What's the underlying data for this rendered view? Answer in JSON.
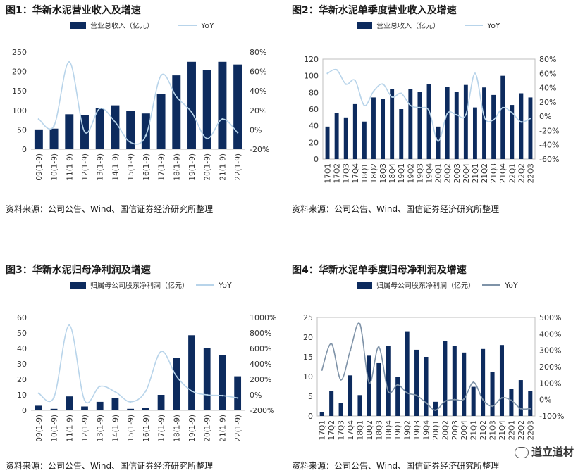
{
  "source_label": "资料来源：公司公告、Wind、国信证券经济研究所整理",
  "watermark": "道立道材",
  "colors": {
    "bar": "#0d2b5e",
    "line_light": "#b8d4ea",
    "line_dark": "#7f93a8",
    "axis": "#bfbfbf"
  },
  "chart_data": [
    {
      "type": "bar",
      "title": "图1：华新水泥营业收入及增速",
      "legend": {
        "bar": "营业总收入（亿元）",
        "line": "YoY"
      },
      "categories": [
        "09(1-9)",
        "10(1-9)",
        "11(1-9)",
        "12(1-9)",
        "13(1-9)",
        "14(1-9)",
        "15(1-9)",
        "16(1-9)",
        "17(1-9)",
        "18(1-9)",
        "19(1-9)",
        "20(1-9)",
        "21(1-9)",
        "22(1-9)"
      ],
      "series": [
        {
          "name": "营业总收入（亿元）",
          "type": "bar",
          "axis": "left",
          "values": [
            51,
            53,
            90,
            88,
            106,
            113,
            98,
            92,
            143,
            190,
            225,
            204,
            225,
            218
          ]
        },
        {
          "name": "YoY",
          "type": "line",
          "axis": "right",
          "values": [
            11,
            4,
            70,
            -2,
            22,
            8,
            -13,
            -6,
            56,
            34,
            18,
            -9,
            11,
            -3
          ]
        }
      ],
      "ylim": [
        0,
        250
      ],
      "yticks": [
        0,
        50,
        100,
        150,
        200,
        250
      ],
      "y2lim": [
        -20,
        80
      ],
      "y2ticks": [
        "-20%",
        "0%",
        "20%",
        "40%",
        "60%",
        "80%"
      ]
    },
    {
      "type": "bar",
      "title": "图2：华新水泥单季度营业收入及增速",
      "legend": {
        "bar": "营业总收入（亿元）",
        "line": "YoY"
      },
      "categories": [
        "17Q1",
        "17Q2",
        "17Q3",
        "17Q4",
        "18Q1",
        "18Q2",
        "18Q3",
        "18Q4",
        "19Q1",
        "19Q2",
        "19Q3",
        "19Q4",
        "20Q1",
        "20Q2",
        "20Q3",
        "20Q4",
        "21Q1",
        "21Q2",
        "21Q3",
        "21Q4",
        "22Q1",
        "22Q2",
        "22Q3"
      ],
      "series": [
        {
          "name": "营业总收入（亿元）",
          "type": "bar",
          "axis": "left",
          "values": [
            39,
            55,
            50,
            66,
            45,
            74,
            72,
            84,
            60,
            84,
            81,
            90,
            39,
            87,
            81,
            89,
            62,
            86,
            77,
            100,
            65,
            79,
            74
          ]
        },
        {
          "name": "YoY",
          "type": "line",
          "axis": "right",
          "values": [
            60,
            65,
            45,
            50,
            15,
            35,
            45,
            27,
            32,
            15,
            12,
            8,
            -35,
            4,
            2,
            2,
            60,
            -1,
            -5,
            12,
            5,
            -8,
            -3
          ]
        }
      ],
      "ylim": [
        0,
        120
      ],
      "yticks": [
        0,
        20,
        40,
        60,
        80,
        100,
        120
      ],
      "y2lim": [
        -60,
        80
      ],
      "y2ticks": [
        "-60%",
        "-40%",
        "-20%",
        "0%",
        "20%",
        "40%",
        "60%",
        "80%"
      ]
    },
    {
      "type": "bar",
      "title": "图3：华新水泥归母净利润及增速",
      "legend": {
        "bar": "归属母公司股东净利润（亿元）",
        "line": "YoY"
      },
      "categories": [
        "09(1-9)",
        "10(1-9)",
        "11(1-9)",
        "12(1-9)",
        "13(1-9)",
        "14(1-9)",
        "15(1-9)",
        "16(1-9)",
        "17(1-9)",
        "18(1-9)",
        "19(1-9)",
        "20(1-9)",
        "21(1-9)",
        "22(1-9)"
      ],
      "series": [
        {
          "name": "归属母公司股东净利润（亿元）",
          "type": "bar",
          "axis": "left",
          "values": [
            3,
            1,
            9,
            2.5,
            5.5,
            8,
            1,
            1.5,
            10,
            34,
            48.5,
            40,
            35.5,
            22
          ]
        },
        {
          "name": "YoY",
          "type": "line",
          "axis": "right",
          "values": [
            20,
            -30,
            900,
            -70,
            110,
            40,
            -90,
            50,
            560,
            240,
            50,
            0,
            -10,
            -40
          ]
        }
      ],
      "ylim": [
        0,
        60
      ],
      "yticks": [
        0,
        10,
        20,
        30,
        40,
        50,
        60
      ],
      "y2lim": [
        -200,
        1000
      ],
      "y2ticks": [
        "-200%",
        "0%",
        "200%",
        "400%",
        "600%",
        "800%",
        "1000%"
      ]
    },
    {
      "type": "bar",
      "title": "图4：华新水泥单季度归母净利润及增速",
      "legend": {
        "bar": "归属母公司股东净利润（亿元）",
        "line": "YoY"
      },
      "categories": [
        "17Q1",
        "17Q2",
        "17Q3",
        "17Q4",
        "18Q1",
        "18Q2",
        "18Q3",
        "18Q4",
        "19Q1",
        "19Q2",
        "19Q3",
        "19Q4",
        "20Q1",
        "20Q2",
        "20Q3",
        "20Q4",
        "21Q1",
        "21Q2",
        "21Q3",
        "21Q4",
        "22Q1",
        "22Q2",
        "22Q3"
      ],
      "series": [
        {
          "name": "归属母公司股东净利润（亿元）",
          "type": "bar",
          "axis": "left",
          "values": [
            1,
            6.3,
            3.3,
            10.3,
            5.3,
            15.3,
            13.4,
            17.8,
            10,
            21.5,
            16.8,
            15,
            3.6,
            19,
            17.7,
            16.1,
            7.4,
            17,
            11.2,
            18,
            6.8,
            9.1,
            6.4
          ]
        },
        {
          "name": "YoY",
          "type": "line",
          "axis": "right",
          "values": [
            180,
            340,
            120,
            300,
            460,
            100,
            320,
            50,
            90,
            40,
            25,
            -20,
            -65,
            -10,
            0,
            3,
            105,
            0,
            -40,
            10,
            -5,
            -55,
            -55
          ]
        }
      ],
      "ylim": [
        0,
        25
      ],
      "yticks": [
        0,
        5,
        10,
        15,
        20,
        25
      ],
      "y2lim": [
        -100,
        500
      ],
      "y2ticks": [
        "-100%",
        "0%",
        "100%",
        "200%",
        "300%",
        "400%",
        "500%"
      ]
    }
  ]
}
